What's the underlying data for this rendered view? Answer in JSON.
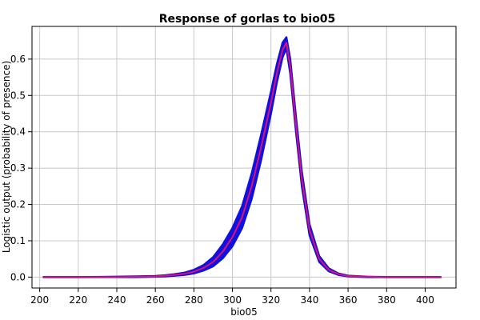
{
  "chart_data": {
    "type": "line",
    "title": "Response of gorlas to bio05",
    "xlabel": "bio05",
    "ylabel": "Logistic output (probability of presence)",
    "xlim": [
      196,
      416
    ],
    "ylim": [
      -0.03,
      0.69
    ],
    "xticks": [
      "200",
      "220",
      "240",
      "260",
      "280",
      "300",
      "320",
      "340",
      "360",
      "380",
      "400"
    ],
    "yticks": [
      "0.0",
      "0.1",
      "0.2",
      "0.3",
      "0.4",
      "0.5",
      "0.6"
    ],
    "grid": true,
    "series": [
      {
        "color": "#e0106f",
        "role": "mean",
        "x": [
          202,
          220,
          240,
          250,
          260,
          265,
          270,
          275,
          280,
          285,
          290,
          295,
          300,
          305,
          310,
          315,
          320,
          323,
          326,
          328,
          330,
          333,
          336,
          340,
          345,
          350,
          355,
          360,
          370,
          380,
          390,
          400,
          408
        ],
        "values": [
          0.0,
          0.0,
          0.0,
          0.001,
          0.002,
          0.004,
          0.006,
          0.009,
          0.015,
          0.025,
          0.042,
          0.07,
          0.11,
          0.165,
          0.25,
          0.36,
          0.48,
          0.56,
          0.625,
          0.645,
          0.58,
          0.42,
          0.27,
          0.13,
          0.05,
          0.02,
          0.008,
          0.003,
          0.001,
          0.0,
          0.0,
          0.0,
          0.0
        ]
      },
      {
        "color": "#1010e0",
        "role": "upper",
        "x": [
          202,
          220,
          240,
          250,
          260,
          265,
          270,
          275,
          280,
          285,
          290,
          295,
          300,
          305,
          310,
          315,
          320,
          323,
          326,
          328,
          330,
          333,
          336,
          340,
          345,
          350,
          355,
          360,
          370,
          380,
          390,
          400,
          408
        ],
        "values": [
          0.0,
          0.0,
          0.001,
          0.002,
          0.003,
          0.005,
          0.008,
          0.012,
          0.02,
          0.033,
          0.055,
          0.09,
          0.135,
          0.195,
          0.285,
          0.395,
          0.51,
          0.585,
          0.645,
          0.66,
          0.6,
          0.44,
          0.29,
          0.145,
          0.058,
          0.024,
          0.01,
          0.004,
          0.001,
          0.0,
          0.0,
          0.0,
          0.0
        ]
      },
      {
        "color": "#1010e0",
        "role": "lower",
        "x": [
          202,
          220,
          240,
          250,
          260,
          265,
          270,
          275,
          280,
          285,
          290,
          295,
          300,
          305,
          310,
          315,
          320,
          323,
          326,
          328,
          330,
          333,
          336,
          340,
          345,
          350,
          355,
          360,
          370,
          380,
          390,
          400,
          408
        ],
        "values": [
          0.0,
          0.0,
          0.0,
          0.0,
          0.001,
          0.002,
          0.004,
          0.006,
          0.01,
          0.018,
          0.03,
          0.052,
          0.085,
          0.135,
          0.215,
          0.325,
          0.45,
          0.535,
          0.605,
          0.63,
          0.56,
          0.4,
          0.25,
          0.115,
          0.042,
          0.016,
          0.006,
          0.002,
          0.0,
          0.0,
          0.0,
          0.0,
          0.0
        ]
      }
    ]
  }
}
